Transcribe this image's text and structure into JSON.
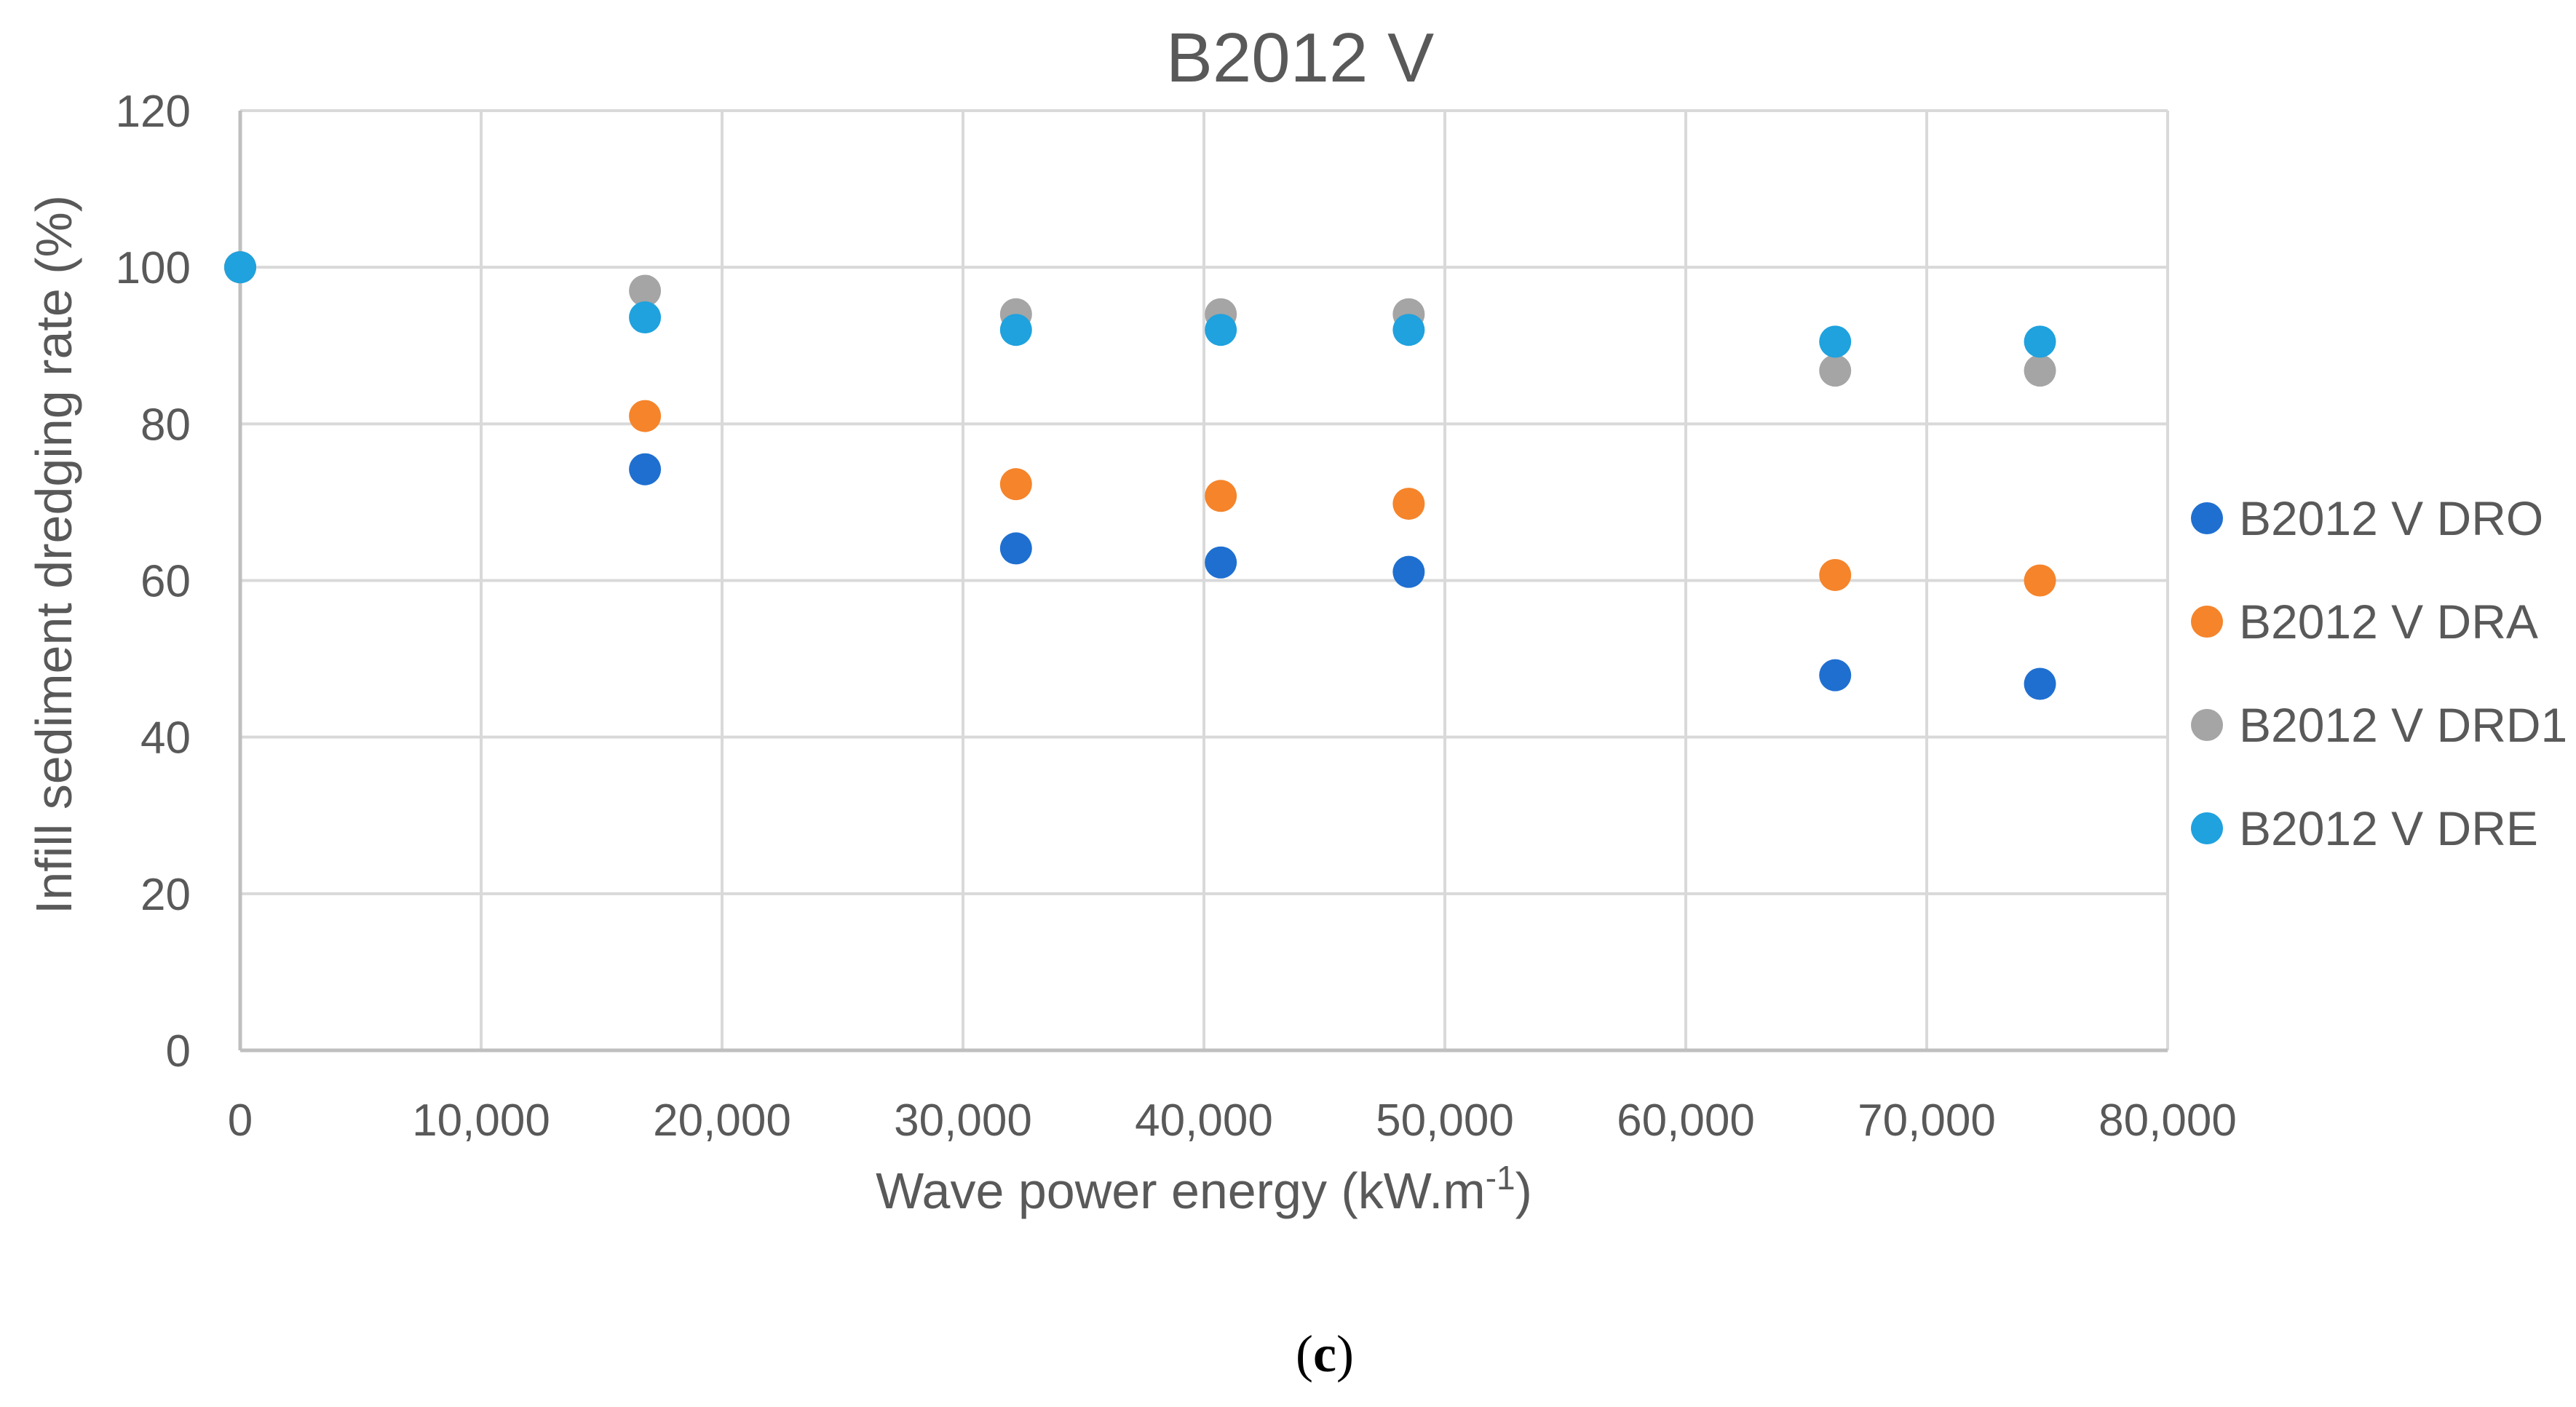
{
  "chart_data": {
    "type": "scatter",
    "title": "B2012 V",
    "xlabel": "Wave power energy (kW.m",
    "xlabel_sup": "-1",
    "xlabel_end": ")",
    "ylabel": "Infill sediment dredging rate (%)",
    "xlim": [
      0,
      80000
    ],
    "ylim": [
      0,
      120
    ],
    "x_ticks": [
      "0",
      "10,000",
      "20,000",
      "30,000",
      "40,000",
      "50,000",
      "60,000",
      "70,000",
      "80,000"
    ],
    "y_ticks": [
      "0",
      "20",
      "40",
      "60",
      "80",
      "100",
      "120"
    ],
    "grid": true,
    "legend_position": "right",
    "x": [
      0,
      16800,
      32200,
      40700,
      48500,
      66200,
      74700
    ],
    "series": [
      {
        "name": "B2012 V DRO",
        "color": "#1F6FD0",
        "values": [
          100,
          74.2,
          64.1,
          62.3,
          61.1,
          47.9,
          46.8
        ]
      },
      {
        "name": "B2012 V DRA",
        "color": "#F5842B",
        "values": [
          100,
          81.0,
          72.3,
          70.8,
          69.8,
          60.7,
          60.0
        ]
      },
      {
        "name": "B2012 V DRD1",
        "color": "#A5A5A5",
        "values": [
          100,
          97.0,
          94.0,
          94.0,
          94.0,
          86.8,
          86.8
        ]
      },
      {
        "name": "B2012 V DRE",
        "color": "#1FA2DE",
        "values": [
          100,
          93.6,
          92.0,
          92.0,
          92.0,
          90.5,
          90.5
        ]
      }
    ]
  },
  "caption": {
    "open": "(",
    "letter": "c",
    "close": ")"
  }
}
